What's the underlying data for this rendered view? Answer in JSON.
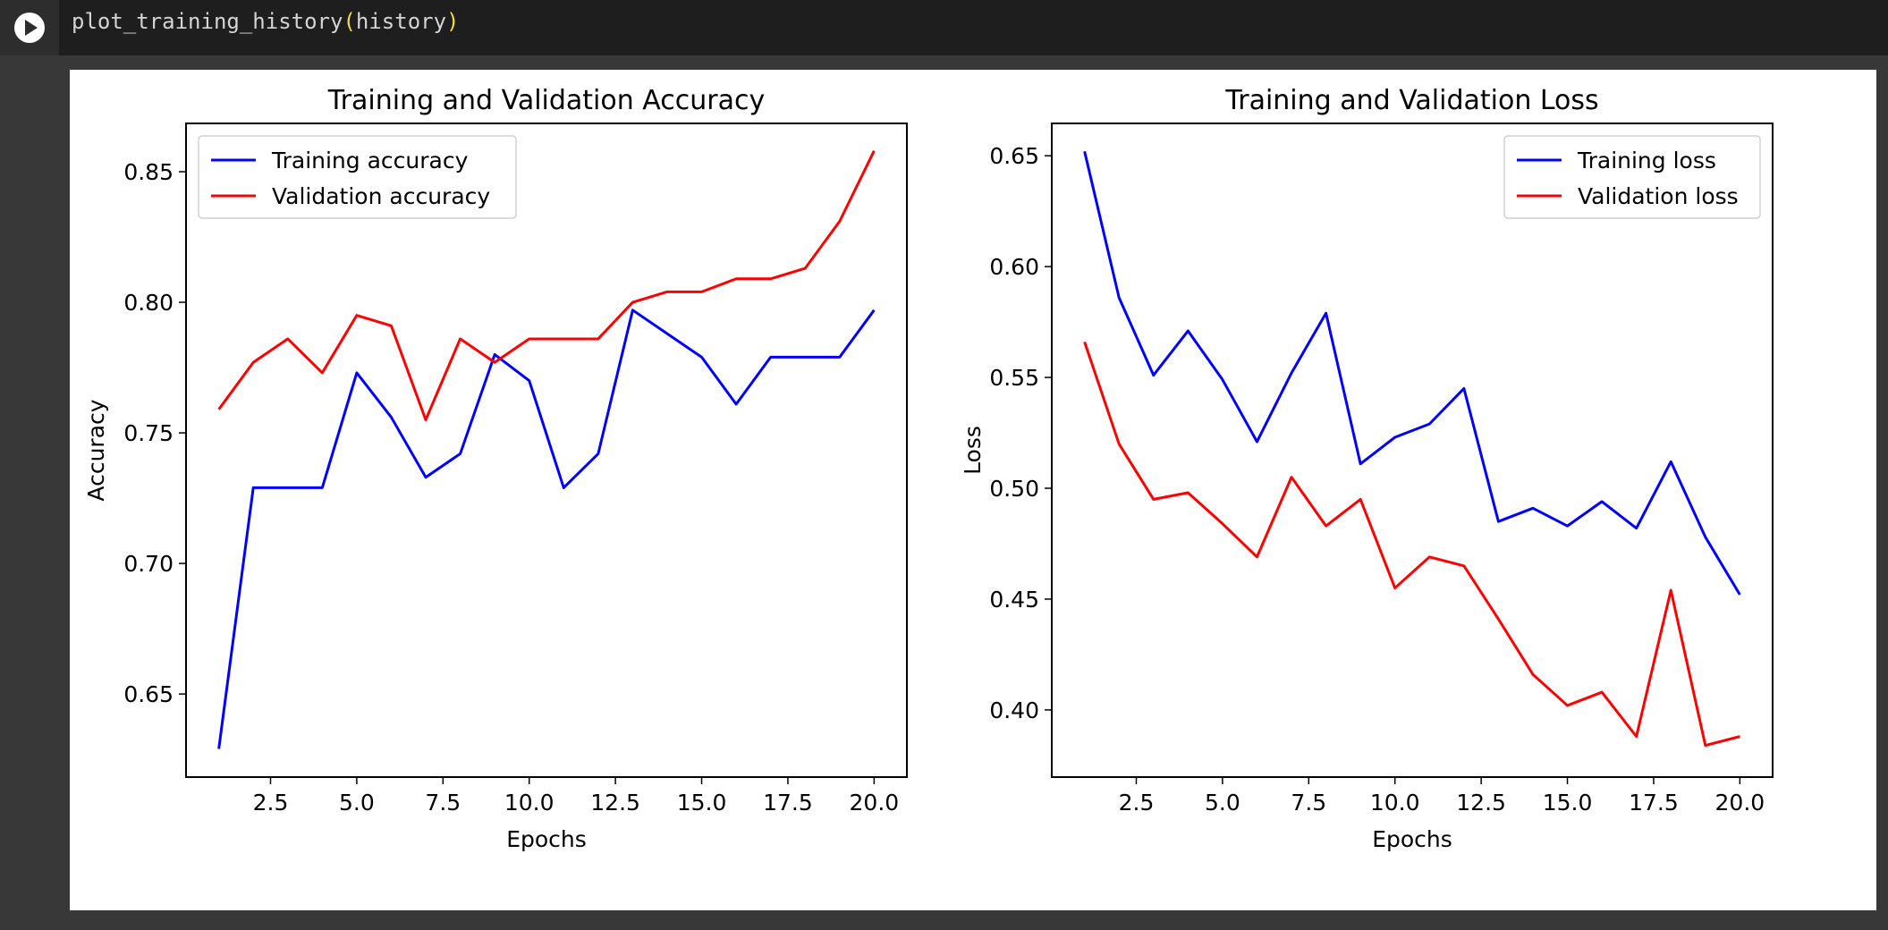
{
  "cell": {
    "code": {
      "func": "plot_training_history",
      "open": "(",
      "arg": "history",
      "close": ")"
    }
  },
  "colors": {
    "training": "#0000ff",
    "validation": "#ff0000",
    "code_bg": "#1e1e1e",
    "page_bg": "#383838"
  },
  "chart_data": [
    {
      "type": "line",
      "title": "Training and Validation Accuracy",
      "xlabel": "Epochs",
      "ylabel": "Accuracy",
      "xlim": [
        0.05,
        20.95
      ],
      "ylim": [
        0.6182,
        0.8685
      ],
      "xticks": [
        2.5,
        5.0,
        7.5,
        10.0,
        12.5,
        15.0,
        17.5,
        20.0
      ],
      "xtick_labels": [
        "2.5",
        "5.0",
        "7.5",
        "10.0",
        "12.5",
        "15.0",
        "17.5",
        "20.0"
      ],
      "yticks": [
        0.65,
        0.7,
        0.75,
        0.8,
        0.85
      ],
      "ytick_labels": [
        "0.65",
        "0.70",
        "0.75",
        "0.80",
        "0.85"
      ],
      "legend_position": "top-left",
      "x": [
        1,
        2,
        3,
        4,
        5,
        6,
        7,
        8,
        9,
        10,
        11,
        12,
        13,
        14,
        15,
        16,
        17,
        18,
        19,
        20
      ],
      "series": [
        {
          "name": "Training accuracy",
          "color": "#0000ff",
          "values": [
            0.629,
            0.729,
            0.729,
            0.729,
            0.773,
            0.756,
            0.733,
            0.742,
            0.78,
            0.77,
            0.729,
            0.742,
            0.797,
            0.788,
            0.779,
            0.761,
            0.779,
            0.779,
            0.779,
            0.797
          ]
        },
        {
          "name": "Validation accuracy",
          "color": "#ff0000",
          "values": [
            0.759,
            0.777,
            0.786,
            0.773,
            0.795,
            0.791,
            0.755,
            0.786,
            0.777,
            0.786,
            0.786,
            0.786,
            0.8,
            0.804,
            0.804,
            0.809,
            0.809,
            0.813,
            0.831,
            0.858
          ]
        }
      ]
    },
    {
      "type": "line",
      "title": "Training and Validation Loss",
      "xlabel": "Epochs",
      "ylabel": "Loss",
      "xlim": [
        0.05,
        20.95
      ],
      "ylim": [
        0.3697,
        0.6646
      ],
      "xticks": [
        2.5,
        5.0,
        7.5,
        10.0,
        12.5,
        15.0,
        17.5,
        20.0
      ],
      "xtick_labels": [
        "2.5",
        "5.0",
        "7.5",
        "10.0",
        "12.5",
        "15.0",
        "17.5",
        "20.0"
      ],
      "yticks": [
        0.4,
        0.45,
        0.5,
        0.55,
        0.6,
        0.65
      ],
      "ytick_labels": [
        "0.40",
        "0.45",
        "0.50",
        "0.55",
        "0.60",
        "0.65"
      ],
      "legend_position": "top-right",
      "x": [
        1,
        2,
        3,
        4,
        5,
        6,
        7,
        8,
        9,
        10,
        11,
        12,
        13,
        14,
        15,
        16,
        17,
        18,
        19,
        20
      ],
      "series": [
        {
          "name": "Training loss",
          "color": "#0000ff",
          "values": [
            0.652,
            0.586,
            0.551,
            0.571,
            0.549,
            0.521,
            0.552,
            0.579,
            0.511,
            0.523,
            0.529,
            0.545,
            0.485,
            0.491,
            0.483,
            0.494,
            0.482,
            0.512,
            0.478,
            0.452
          ]
        },
        {
          "name": "Validation loss",
          "color": "#ff0000",
          "values": [
            0.566,
            0.52,
            0.495,
            0.498,
            0.484,
            0.469,
            0.505,
            0.483,
            0.495,
            0.455,
            0.469,
            0.465,
            0.441,
            0.416,
            0.402,
            0.408,
            0.388,
            0.454,
            0.384,
            0.388
          ]
        }
      ]
    }
  ]
}
